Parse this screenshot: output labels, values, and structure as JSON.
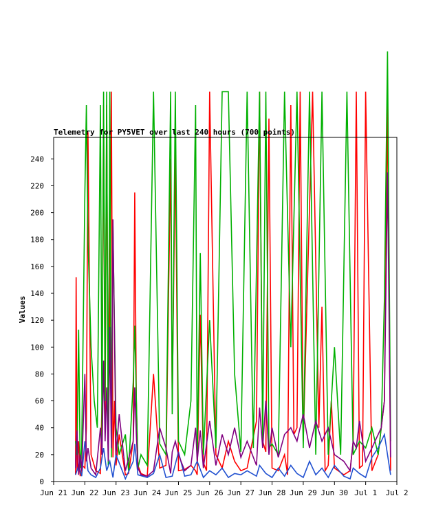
{
  "chart_data": {
    "type": "line",
    "title": "Telemetry for PY5VET over last 240 hours (700 points)",
    "xlabel": "",
    "ylabel": "Values",
    "ylim": [
      0,
      256
    ],
    "yticks": [
      0,
      20,
      40,
      60,
      80,
      100,
      120,
      140,
      160,
      180,
      200,
      220,
      240
    ],
    "xlim": [
      0,
      11
    ],
    "xticks": [
      {
        "label": "Jun 21",
        "x": 0
      },
      {
        "label": "Jun 22",
        "x": 1
      },
      {
        "label": "Jun 23",
        "x": 2
      },
      {
        "label": "Jun 24",
        "x": 3
      },
      {
        "label": "Jun 25",
        "x": 4
      },
      {
        "label": "Jun 26",
        "x": 5
      },
      {
        "label": "Jun 27",
        "x": 6
      },
      {
        "label": "Jun 28",
        "x": 7
      },
      {
        "label": "Jun 29",
        "x": 8
      },
      {
        "label": "Jun 30",
        "x": 9
      },
      {
        "label": "Jul 1",
        "x": 10
      },
      {
        "label": "Jul 2",
        "x": 11
      }
    ],
    "grid": false,
    "colors": {
      "red": "#ff0000",
      "green": "#00b000",
      "blue": "#2050d0",
      "purple": "#800080"
    },
    "series": [
      {
        "color": "red",
        "x": [
          0.7,
          0.72,
          0.75,
          0.8,
          0.85,
          0.92,
          1.0,
          1.05,
          1.1,
          1.2,
          1.35,
          1.5,
          1.55,
          1.6,
          1.65,
          1.7,
          1.75,
          1.8,
          1.85,
          1.9,
          1.95,
          2.0,
          2.1,
          2.3,
          2.4,
          2.55,
          2.6,
          2.65,
          2.7,
          2.8,
          3.0,
          3.2,
          3.4,
          3.6,
          3.75,
          3.8,
          3.9,
          4.0,
          4.2,
          4.4,
          4.55,
          4.6,
          4.7,
          4.8,
          4.9,
          5.0,
          5.2,
          5.4,
          5.6,
          5.8,
          6.0,
          6.2,
          6.5,
          6.6,
          6.7,
          6.8,
          6.9,
          7.0,
          7.2,
          7.4,
          7.5,
          7.6,
          7.7,
          7.8,
          7.9,
          8.0,
          8.3,
          8.5,
          8.6,
          8.7,
          8.8,
          8.9,
          9.0,
          9.3,
          9.5,
          9.6,
          9.7,
          9.8,
          9.9,
          10.0,
          10.2,
          10.4,
          10.5,
          10.6,
          10.7,
          10.8
        ],
        "y": [
          5,
          152,
          8,
          30,
          4,
          12,
          10,
          40,
          260,
          20,
          8,
          6,
          60,
          280,
          40,
          280,
          30,
          120,
          290,
          18,
          60,
          12,
          35,
          5,
          6,
          30,
          215,
          60,
          12,
          6,
          4,
          80,
          10,
          12,
          240,
          60,
          245,
          8,
          9,
          12,
          8,
          5,
          124,
          14,
          8,
          290,
          20,
          10,
          30,
          15,
          8,
          10,
          45,
          290,
          30,
          22,
          270,
          10,
          8,
          20,
          5,
          280,
          35,
          40,
          290,
          30,
          290,
          40,
          130,
          8,
          12,
          60,
          10,
          5,
          8,
          30,
          290,
          10,
          12,
          290,
          8,
          20,
          40,
          60,
          280,
          8
        ]
      },
      {
        "color": "green",
        "x": [
          0.7,
          0.75,
          0.8,
          0.85,
          0.9,
          1.0,
          1.05,
          1.1,
          1.2,
          1.3,
          1.4,
          1.5,
          1.55,
          1.6,
          1.65,
          1.7,
          1.75,
          1.8,
          1.85,
          1.9,
          2.0,
          2.1,
          2.3,
          2.4,
          2.55,
          2.6,
          2.7,
          2.8,
          3.0,
          3.2,
          3.4,
          3.6,
          3.75,
          3.8,
          3.9,
          4.0,
          4.2,
          4.4,
          4.55,
          4.6,
          4.7,
          4.8,
          5.0,
          5.2,
          5.4,
          5.6,
          5.8,
          6.0,
          6.2,
          6.4,
          6.6,
          6.7,
          6.8,
          6.9,
          7.0,
          7.2,
          7.4,
          7.6,
          7.8,
          8.0,
          8.2,
          8.4,
          8.6,
          8.8,
          9.0,
          9.2,
          9.4,
          9.6,
          9.8,
          10.0,
          10.2,
          10.4,
          10.5,
          10.6,
          10.7,
          10.8
        ],
        "y": [
          30,
          20,
          113,
          10,
          25,
          215,
          280,
          180,
          100,
          60,
          40,
          280,
          30,
          290,
          60,
          290,
          12,
          290,
          18,
          190,
          40,
          20,
          35,
          8,
          74,
          116,
          10,
          20,
          12,
          290,
          28,
          20,
          290,
          50,
          290,
          30,
          20,
          60,
          280,
          15,
          170,
          20,
          120,
          25,
          290,
          290,
          80,
          22,
          290,
          25,
          290,
          30,
          290,
          25,
          28,
          20,
          290,
          100,
          290,
          25,
          290,
          20,
          290,
          20,
          100,
          20,
          290,
          20,
          30,
          25,
          40,
          20,
          40,
          136,
          320,
          30
        ]
      },
      {
        "color": "blue",
        "x": [
          0.7,
          0.8,
          0.9,
          1.0,
          1.1,
          1.2,
          1.35,
          1.5,
          1.6,
          1.7,
          1.8,
          1.9,
          2.0,
          2.3,
          2.55,
          2.6,
          2.7,
          3.0,
          3.2,
          3.4,
          3.6,
          3.8,
          4.0,
          4.2,
          4.4,
          4.6,
          4.8,
          5.0,
          5.2,
          5.4,
          5.6,
          5.8,
          6.0,
          6.2,
          6.5,
          6.6,
          6.8,
          7.0,
          7.2,
          7.4,
          7.6,
          7.8,
          8.0,
          8.2,
          8.4,
          8.6,
          8.8,
          9.0,
          9.3,
          9.5,
          9.6,
          9.8,
          10.0,
          10.2,
          10.4,
          10.6,
          10.8
        ],
        "y": [
          5,
          12,
          4,
          30,
          8,
          5,
          3,
          10,
          25,
          8,
          15,
          3,
          20,
          2,
          15,
          28,
          5,
          3,
          6,
          20,
          3,
          4,
          22,
          4,
          5,
          15,
          3,
          8,
          5,
          10,
          3,
          6,
          5,
          8,
          4,
          12,
          6,
          3,
          10,
          4,
          12,
          6,
          3,
          15,
          5,
          10,
          3,
          12,
          4,
          2,
          10,
          6,
          3,
          18,
          25,
          35,
          5
        ]
      },
      {
        "color": "purple",
        "x": [
          0.7,
          0.75,
          0.8,
          0.85,
          0.9,
          1.0,
          1.05,
          1.1,
          1.2,
          1.35,
          1.5,
          1.55,
          1.6,
          1.65,
          1.7,
          1.75,
          1.8,
          1.85,
          1.9,
          2.0,
          2.1,
          2.3,
          2.55,
          2.6,
          2.65,
          2.7,
          2.8,
          3.0,
          3.2,
          3.4,
          3.6,
          3.75,
          3.8,
          3.9,
          4.0,
          4.2,
          4.4,
          4.55,
          4.6,
          4.7,
          4.8,
          5.0,
          5.2,
          5.4,
          5.6,
          5.8,
          6.0,
          6.2,
          6.5,
          6.6,
          6.7,
          6.8,
          6.9,
          7.0,
          7.2,
          7.4,
          7.6,
          7.8,
          8.0,
          8.2,
          8.4,
          8.6,
          8.8,
          9.0,
          9.3,
          9.5,
          9.6,
          9.7,
          9.8,
          10.0,
          10.2,
          10.4,
          10.5,
          10.6,
          10.7,
          10.8
        ],
        "y": [
          10,
          38,
          5,
          20,
          8,
          80,
          15,
          25,
          10,
          5,
          40,
          20,
          90,
          30,
          70,
          15,
          115,
          25,
          195,
          20,
          50,
          8,
          30,
          70,
          35,
          10,
          5,
          4,
          8,
          40,
          25,
          6,
          22,
          30,
          20,
          8,
          12,
          40,
          15,
          38,
          10,
          45,
          12,
          35,
          20,
          40,
          18,
          30,
          12,
          55,
          25,
          60,
          20,
          40,
          18,
          35,
          40,
          30,
          50,
          25,
          45,
          30,
          40,
          20,
          15,
          8,
          30,
          25,
          45,
          15,
          25,
          35,
          40,
          60,
          230,
          18
        ]
      }
    ]
  }
}
